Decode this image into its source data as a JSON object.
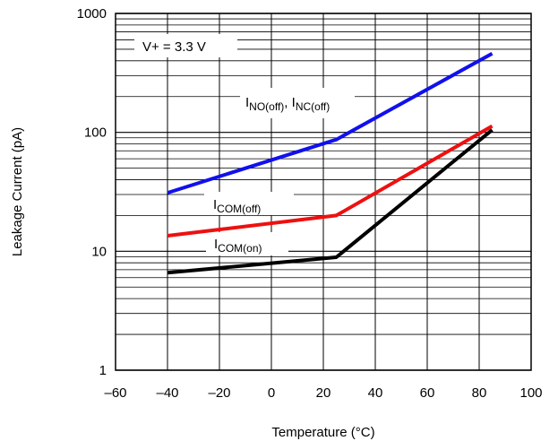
{
  "chart_data": {
    "type": "line",
    "title": "",
    "xlabel": "Temperature (°C)",
    "ylabel": "Leakage Current  (pA)",
    "xlim": [
      -60,
      100
    ],
    "ylim": [
      1,
      1000
    ],
    "yscale": "log",
    "grid": true,
    "legend": "none",
    "x_ticks": [
      "–60",
      "–40",
      "–20",
      "0",
      "20",
      "40",
      "60",
      "80",
      "100"
    ],
    "y_ticks": [
      "1",
      "10",
      "100",
      "1000"
    ],
    "series": [
      {
        "color": "#1010ee",
        "x": [
          -40,
          25,
          85
        ],
        "y": [
          31,
          87,
          460
        ]
      },
      {
        "color": "#ee1010",
        "x": [
          -40,
          25,
          85
        ],
        "y": [
          13.5,
          20,
          113
        ]
      },
      {
        "color": "#000000",
        "x": [
          -40,
          25,
          85
        ],
        "y": [
          6.6,
          8.9,
          105
        ]
      }
    ],
    "annotations": {
      "supply": "V+ = 3.3 V",
      "noff_main1": "I",
      "noff_sub1": "NO(off)",
      "noff_sep": ", I",
      "noff_sub2": "NC(off)",
      "comoff_main": "I",
      "comoff_sub": "COM(off)",
      "comon_main": "I",
      "comon_sub": "COM(on)"
    }
  }
}
